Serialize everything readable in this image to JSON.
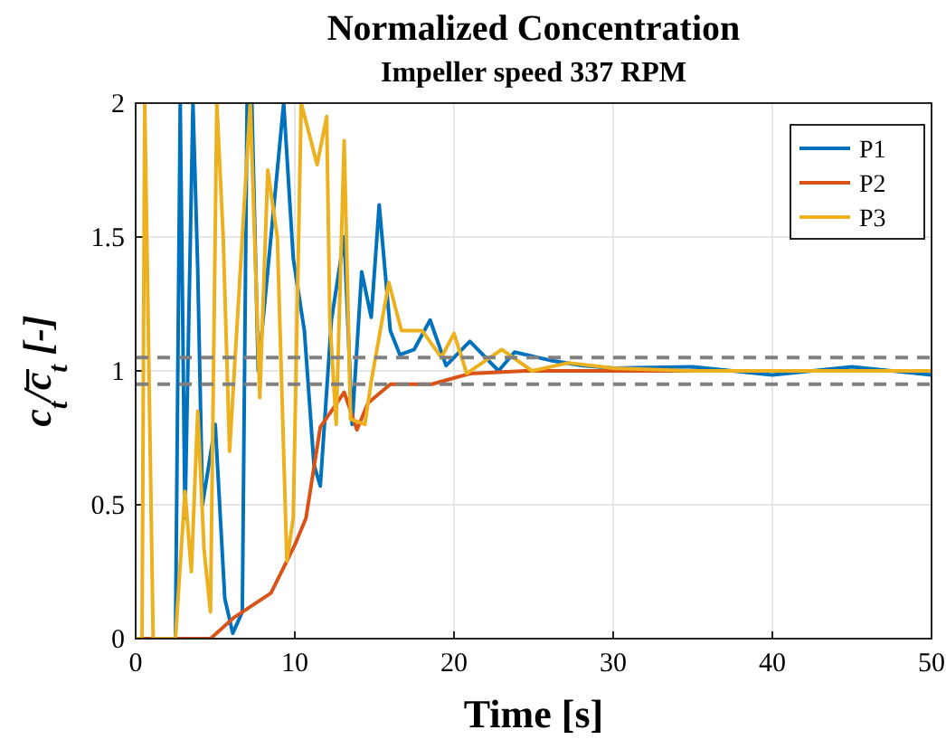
{
  "chart_data": {
    "type": "line",
    "title": "Normalized Concentration",
    "subtitle": "Impeller speed 337 RPM",
    "xlabel": "Time [s]",
    "ylabel": "c$_{t}$/c̅$_{t}$ [-]",
    "xlim": [
      0,
      50
    ],
    "ylim": [
      0,
      2
    ],
    "xticks": [
      0,
      10,
      20,
      30,
      40,
      50
    ],
    "yticks": [
      0,
      0.5,
      1,
      1.5,
      2
    ],
    "grid": true,
    "legend": "top right",
    "line_style": "solid",
    "ref_lines": [
      {
        "axis": "y",
        "value": 1.05,
        "color": "#808080",
        "line_style": "dashed"
      },
      {
        "axis": "y",
        "value": 0.95,
        "color": "#808080",
        "line_style": "dashed"
      }
    ],
    "series": [
      {
        "name": "P1",
        "color": "#0072bd",
        "x": [
          0,
          2.5,
          2.8,
          3.1,
          3.6,
          3.9,
          4.2,
          5,
          5.6,
          6.1,
          6.7,
          7,
          7.3,
          7.7,
          9.3,
          9.9,
          10.6,
          11.2,
          11.6,
          12.3,
          13.1,
          13.6,
          14.2,
          14.8,
          15.3,
          16,
          16.6,
          17.5,
          18.5,
          19.5,
          21,
          22.8,
          23.8,
          26,
          28,
          30,
          35,
          40,
          45,
          50
        ],
        "values": [
          0,
          0,
          2,
          0.45,
          2,
          1.38,
          0.5,
          0.8,
          0.15,
          0.02,
          0.1,
          2,
          2,
          1,
          2,
          1.42,
          1.15,
          0.65,
          0.57,
          1.19,
          1.5,
          0.8,
          1.37,
          1.2,
          1.62,
          1.15,
          1.06,
          1.08,
          1.19,
          1.02,
          1.11,
          1,
          1.07,
          1.04,
          1.02,
          1.01,
          1.015,
          0.985,
          1.015,
          0.985
        ]
      },
      {
        "name": "P2",
        "color": "#d95319",
        "x": [
          0,
          4.7,
          6.2,
          8.5,
          10,
          10.7,
          11.6,
          12.3,
          13.1,
          13.9,
          14.6,
          16,
          18.6,
          21,
          24.5,
          30,
          40,
          50
        ],
        "values": [
          0,
          0,
          0.08,
          0.17,
          0.35,
          0.45,
          0.79,
          0.85,
          0.92,
          0.78,
          0.88,
          0.95,
          0.95,
          0.99,
          1,
          1,
          1,
          1
        ]
      },
      {
        "name": "P3",
        "color": "#edb120",
        "x": [
          0,
          0.4,
          0.57,
          1.1,
          2.5,
          3.1,
          3.5,
          3.9,
          4.3,
          4.7,
          5.1,
          5.5,
          5.9,
          7.2,
          7.8,
          8.3,
          8.9,
          9.5,
          9.9,
          10.4,
          11.4,
          12,
          12.2,
          12.6,
          13.1,
          13.5,
          14.4,
          14.8,
          15.9,
          16.7,
          18,
          19.2,
          20,
          20.8,
          23,
          24.9,
          27.2,
          30,
          35,
          40,
          45,
          50
        ],
        "values": [
          0,
          0,
          2,
          0,
          0,
          0.55,
          0.25,
          0.85,
          0.33,
          0.1,
          2,
          1.5,
          0.7,
          2,
          0.9,
          1.75,
          1.5,
          0.29,
          0.45,
          2,
          1.77,
          1.95,
          1.19,
          0.8,
          1.86,
          0.82,
          0.8,
          0.96,
          1.33,
          1.15,
          1.15,
          1.05,
          1.14,
          0.99,
          1.08,
          1,
          1.03,
          1.01,
          1,
          1,
          1,
          1
        ]
      }
    ]
  }
}
